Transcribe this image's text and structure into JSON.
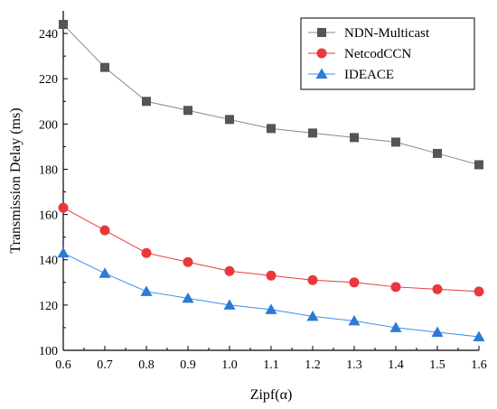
{
  "chart_data": {
    "type": "line",
    "xlabel": "Zipf(α)",
    "ylabel": "Transmission Delay (ms)",
    "x": [
      0.6,
      0.7,
      0.8,
      0.9,
      1.0,
      1.1,
      1.2,
      1.3,
      1.4,
      1.5,
      1.6
    ],
    "x_tick_labels": [
      "0.6",
      "0.7",
      "0.8",
      "0.9",
      "1.0",
      "1.1",
      "1.2",
      "1.3",
      "1.4",
      "1.5",
      "1.6"
    ],
    "xlim": [
      0.6,
      1.6
    ],
    "ylim": [
      100,
      250
    ],
    "y_ticks": [
      100,
      120,
      140,
      160,
      180,
      200,
      220,
      240
    ],
    "y_tick_labels": [
      "100",
      "120",
      "140",
      "160",
      "180",
      "200",
      "220",
      "240"
    ],
    "grid": false,
    "legend_position": "top-right",
    "series": [
      {
        "name": "NDN-Multicast",
        "marker": "square",
        "color": "#555555",
        "line_color": "#888888",
        "values": [
          244,
          225,
          210,
          206,
          202,
          198,
          196,
          194,
          192,
          187,
          182
        ]
      },
      {
        "name": "NetcodCCN",
        "marker": "circle",
        "color": "#e8383d",
        "line_color": "#e8383d",
        "values": [
          163,
          153,
          143,
          139,
          135,
          133,
          131,
          130,
          128,
          127,
          126
        ]
      },
      {
        "name": "IDEACE",
        "marker": "triangle",
        "color": "#2b7bd6",
        "line_color": "#3b8ee8",
        "values": [
          143,
          134,
          126,
          123,
          120,
          118,
          115,
          113,
          110,
          108,
          106
        ]
      }
    ]
  }
}
